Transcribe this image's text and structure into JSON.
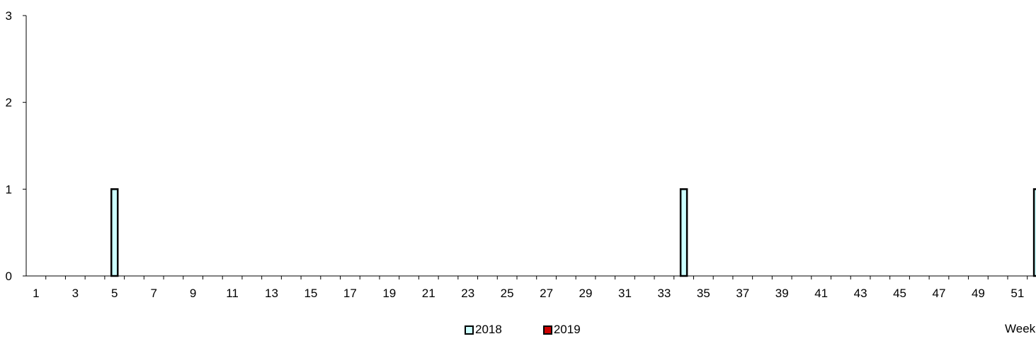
{
  "chart_data": {
    "type": "bar",
    "xlabel": "Week",
    "ylim": [
      0,
      3
    ],
    "yticks": [
      "0",
      "1",
      "2",
      "3"
    ],
    "categories": [
      "1",
      "2",
      "3",
      "4",
      "5",
      "6",
      "7",
      "8",
      "9",
      "10",
      "11",
      "12",
      "13",
      "14",
      "15",
      "16",
      "17",
      "18",
      "19",
      "20",
      "21",
      "22",
      "23",
      "24",
      "25",
      "26",
      "27",
      "28",
      "29",
      "30",
      "31",
      "32",
      "33",
      "34",
      "35",
      "36",
      "37",
      "38",
      "39",
      "40",
      "41",
      "42",
      "43",
      "44",
      "45",
      "46",
      "47",
      "48",
      "49",
      "50",
      "51",
      "52"
    ],
    "xtick_labels": [
      "1",
      "3",
      "5",
      "7",
      "9",
      "11",
      "13",
      "15",
      "17",
      "19",
      "21",
      "23",
      "25",
      "27",
      "29",
      "31",
      "33",
      "35",
      "37",
      "39",
      "41",
      "43",
      "45",
      "47",
      "49",
      "51"
    ],
    "series": [
      {
        "name": "2018",
        "color": "#CCFFFF",
        "values": [
          0,
          0,
          0,
          0,
          1,
          0,
          0,
          0,
          0,
          0,
          0,
          0,
          0,
          0,
          0,
          0,
          0,
          0,
          0,
          0,
          0,
          0,
          0,
          0,
          0,
          0,
          0,
          0,
          0,
          0,
          0,
          0,
          0,
          1,
          0,
          0,
          0,
          0,
          0,
          0,
          0,
          0,
          0,
          0,
          0,
          0,
          0,
          0,
          0,
          0,
          0,
          1
        ]
      },
      {
        "name": "2019",
        "color": "#CC0000",
        "values": [
          0,
          0,
          0,
          0,
          0,
          0,
          0,
          0,
          0,
          0,
          0,
          0,
          0,
          0,
          0,
          0,
          0,
          0,
          0,
          0,
          0,
          0,
          0,
          0,
          0,
          0,
          0,
          0,
          0,
          0,
          0,
          0,
          0,
          0,
          0,
          0,
          0,
          0,
          0,
          0,
          0,
          0,
          0,
          0,
          0,
          0,
          0,
          0,
          0,
          0,
          0,
          0
        ]
      }
    ],
    "grid": false,
    "legend_position": "bottom-center"
  }
}
